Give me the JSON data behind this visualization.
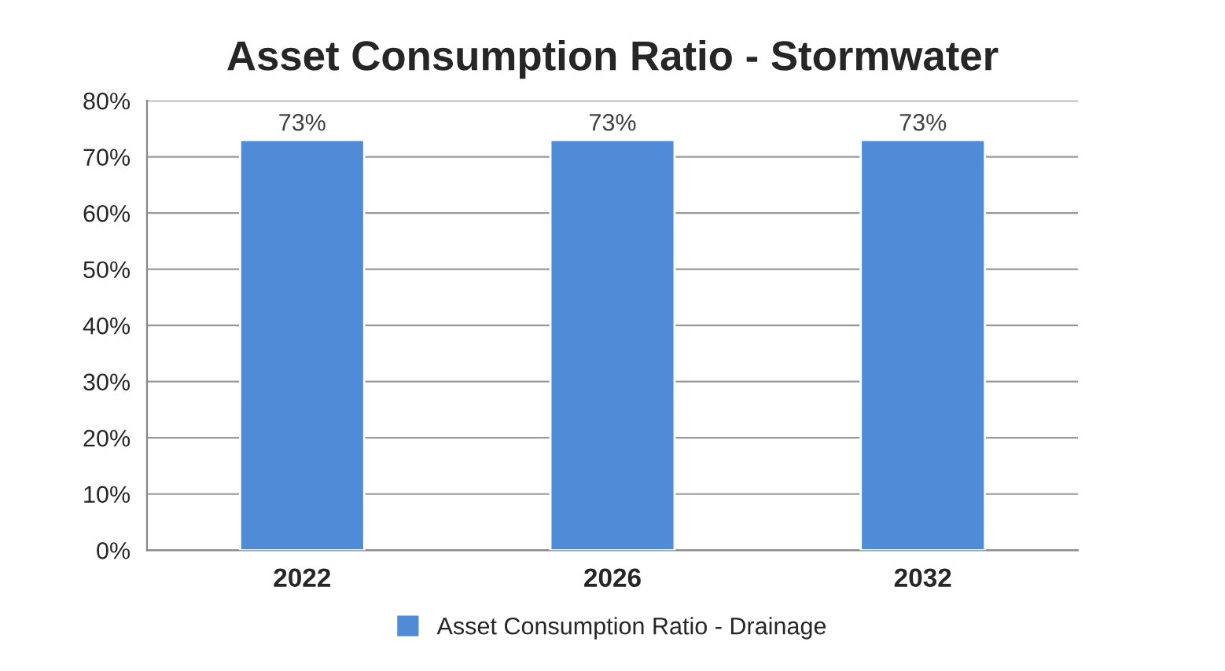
{
  "chart_data": {
    "type": "bar",
    "title": "Asset Consumption Ratio - Stormwater",
    "categories": [
      "2022",
      "2026",
      "2032"
    ],
    "series": [
      {
        "name": "Asset Consumption Ratio - Drainage",
        "color": "#4f8bd6",
        "values": [
          73,
          73,
          73
        ],
        "value_labels": [
          "73%",
          "73%",
          "73%"
        ]
      }
    ],
    "ylim": [
      0,
      80
    ],
    "yticks": [
      {
        "value": 0,
        "label": "0%"
      },
      {
        "value": 10,
        "label": "10%"
      },
      {
        "value": 20,
        "label": "20%"
      },
      {
        "value": 30,
        "label": "30%"
      },
      {
        "value": 40,
        "label": "40%"
      },
      {
        "value": 50,
        "label": "50%"
      },
      {
        "value": 60,
        "label": "60%"
      },
      {
        "value": 70,
        "label": "70%"
      },
      {
        "value": 80,
        "label": "80%"
      }
    ],
    "grid": "y",
    "legend": "bottom"
  }
}
